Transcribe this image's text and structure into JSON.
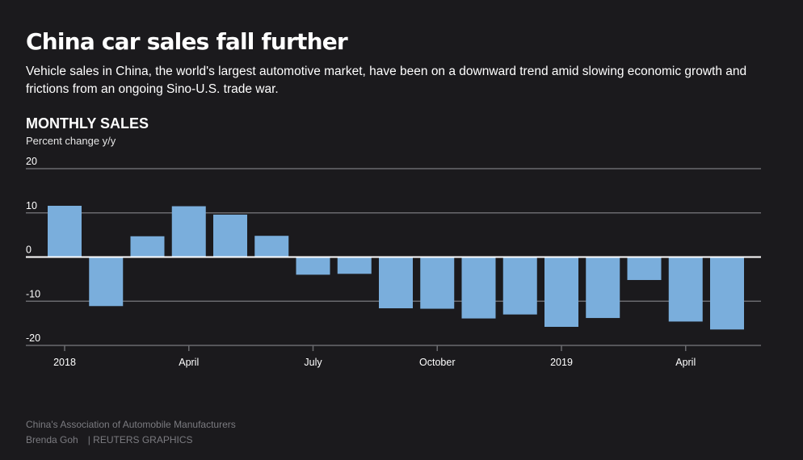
{
  "header": {
    "title": "China car sales fall further",
    "subtitle": "Vehicle sales in China, the world's largest automotive market, have been on a downward trend amid slowing economic growth and frictions from an ongoing Sino-U.S. trade war."
  },
  "footer": {
    "source": "China's Association of Automobile Manufacturers",
    "author": "Brenda Goh",
    "brand": "| REUTERS GRAPHICS"
  },
  "colors": {
    "background": "#1b1a1d",
    "bar": "#7aaedc",
    "gridline": "#6a6a6e",
    "zero_line": "#ffffff"
  },
  "chart_data": {
    "type": "bar",
    "title": "MONTHLY SALES",
    "ylabel": "Percent change y/y",
    "ylim": [
      -20,
      20
    ],
    "yticks": [
      20,
      10,
      0,
      -10,
      -20
    ],
    "grid": true,
    "categories": [
      "Jan 2018",
      "Feb 2018",
      "Mar 2018",
      "Apr 2018",
      "May 2018",
      "Jun 2018",
      "Jul 2018",
      "Aug 2018",
      "Sep 2018",
      "Oct 2018",
      "Nov 2018",
      "Dec 2018",
      "Jan 2019",
      "Feb 2019",
      "Mar 2019",
      "Apr 2019",
      "May 2019"
    ],
    "values": [
      11.6,
      -11.1,
      4.7,
      11.5,
      9.6,
      4.8,
      -4.0,
      -3.8,
      -11.6,
      -11.7,
      -13.9,
      -13.0,
      -15.8,
      -13.8,
      -5.2,
      -14.6,
      -16.4
    ],
    "xtick_labels": [
      {
        "index": 0,
        "label": "2018"
      },
      {
        "index": 3,
        "label": "April"
      },
      {
        "index": 6,
        "label": "July"
      },
      {
        "index": 9,
        "label": "October"
      },
      {
        "index": 12,
        "label": "2019"
      },
      {
        "index": 15,
        "label": "April"
      }
    ]
  }
}
